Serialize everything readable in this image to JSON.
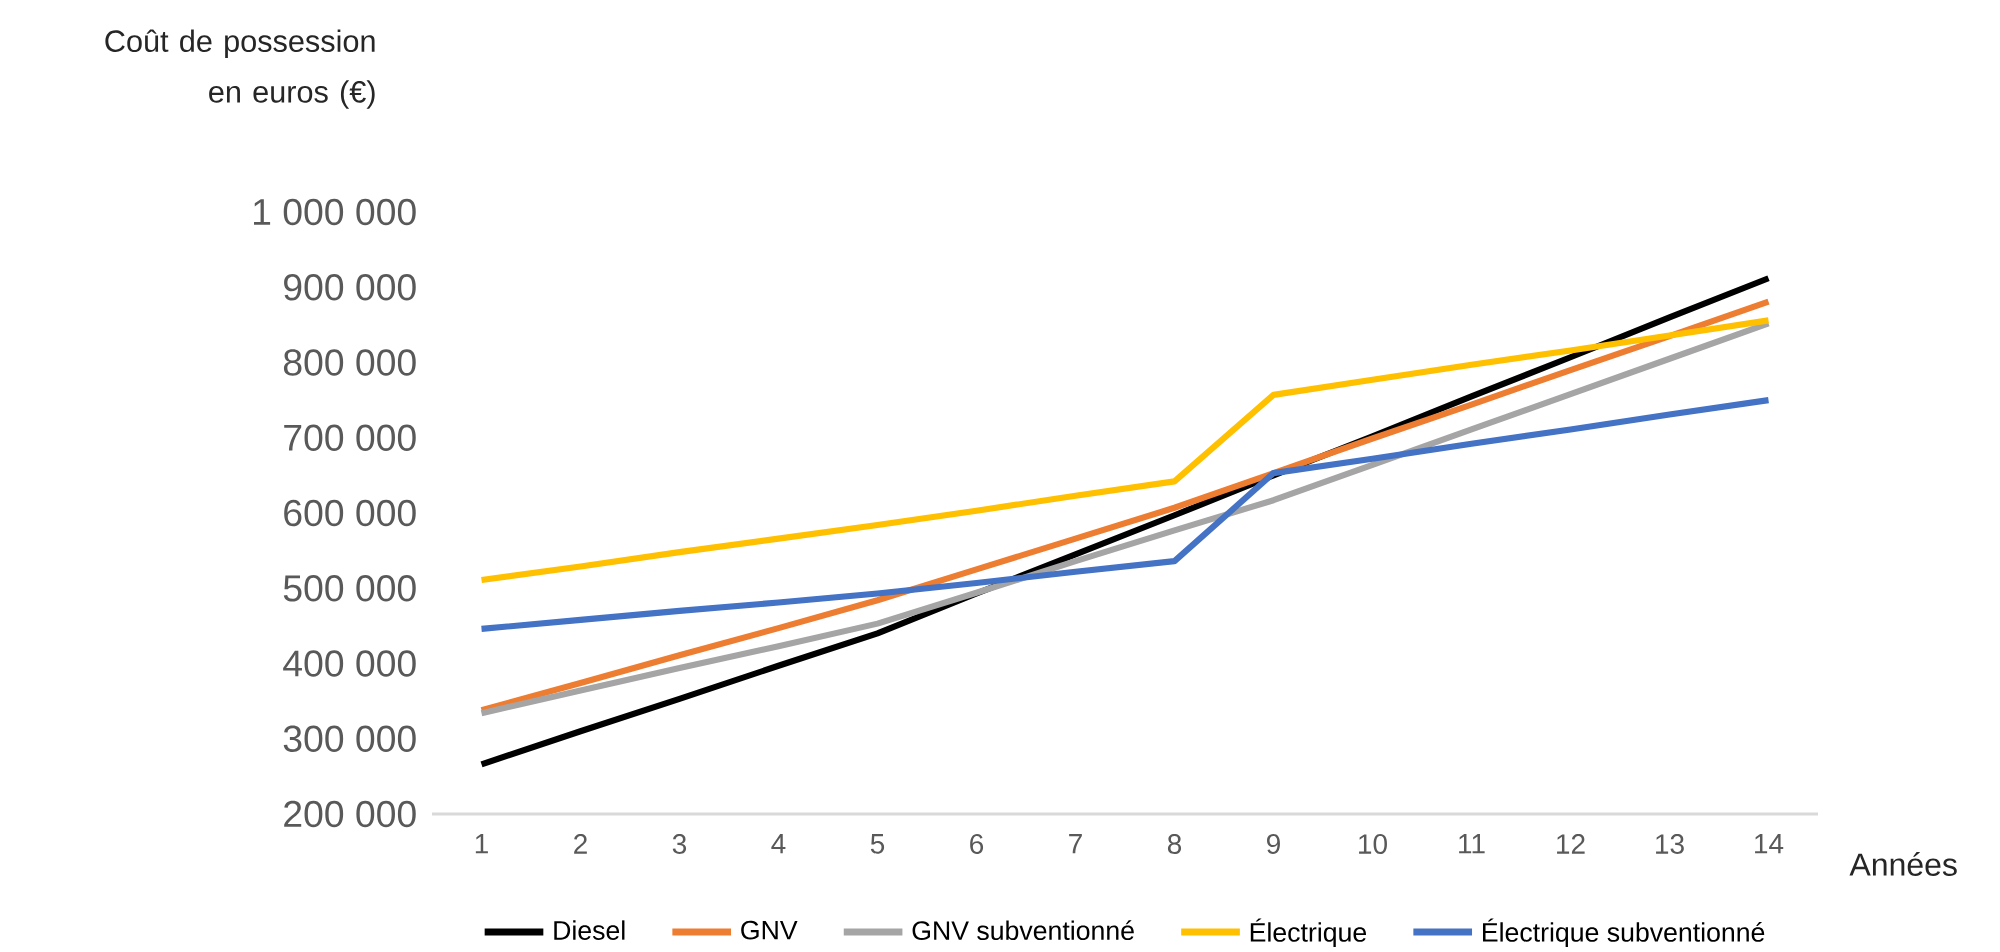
{
  "chart_data": {
    "type": "line",
    "ylabel": "Coût de possession en euros (€)",
    "xlabel": "Années",
    "categories": [
      "1",
      "2",
      "3",
      "4",
      "5",
      "6",
      "7",
      "8",
      "9",
      "10",
      "11",
      "12",
      "13",
      "14"
    ],
    "series": [
      {
        "name": "Diesel",
        "color": "#000000",
        "values": [
          266000,
          310000,
          353000,
          397000,
          440000,
          493000,
          545000,
          597000,
          650000,
          702000,
          755000,
          807000,
          860000,
          912000
        ]
      },
      {
        "name": "GNV",
        "color": "#ed7d31",
        "values": [
          338000,
          374000,
          411000,
          447000,
          484000,
          525000,
          566000,
          607000,
          653000,
          699000,
          744000,
          790000,
          835000,
          881000
        ]
      },
      {
        "name": "GNV subventionné",
        "color": "#a5a5a5",
        "values": [
          334000,
          364000,
          394000,
          423000,
          453000,
          494000,
          536000,
          577000,
          617000,
          664000,
          711000,
          758000,
          805000,
          852000
        ]
      },
      {
        "name": "Électrique",
        "color": "#ffc000",
        "values": [
          511000,
          529000,
          548000,
          566000,
          584000,
          603000,
          623000,
          642000,
          757000,
          777000,
          797000,
          816000,
          836000,
          856000
        ]
      },
      {
        "name": "Électrique subventionné",
        "color": "#4472c4",
        "values": [
          446000,
          458000,
          470000,
          481000,
          493000,
          507000,
          522000,
          536000,
          653000,
          672000,
          692000,
          711000,
          731000,
          750000
        ]
      }
    ],
    "ylim": [
      200000,
      1000000
    ],
    "yticks": [
      {
        "value": 200000,
        "label": "200 000"
      },
      {
        "value": 300000,
        "label": "300 000"
      },
      {
        "value": 400000,
        "label": "400 000"
      },
      {
        "value": 500000,
        "label": "500 000"
      },
      {
        "value": 600000,
        "label": "600 000"
      },
      {
        "value": 700000,
        "label": "700 000"
      },
      {
        "value": 800000,
        "label": "800 000"
      },
      {
        "value": 900000,
        "label": "900 000"
      },
      {
        "value": 1000000,
        "label": "1 000 000"
      }
    ],
    "legend": "bottom",
    "line_style": "solid"
  }
}
